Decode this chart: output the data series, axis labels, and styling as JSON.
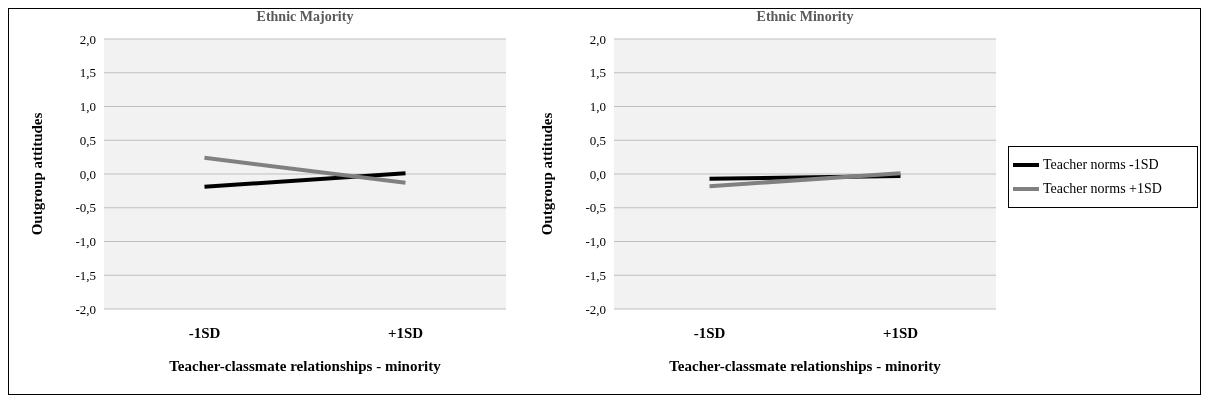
{
  "chart_data": [
    {
      "type": "line",
      "title": "Ethnic Majority",
      "xlabel": "Teacher-classmate relationships - minority",
      "ylabel": "Outgroup attitudes",
      "categories": [
        "-1SD",
        "+1SD"
      ],
      "series": [
        {
          "color": "#000000",
          "values": [
            -0.19,
            0.01
          ]
        },
        {
          "color": "#808080",
          "values": [
            0.24,
            -0.13
          ]
        }
      ],
      "ylim": [
        -2,
        2
      ],
      "yticks": [
        {
          "value": -2,
          "label": "-2,0"
        },
        {
          "value": -1.5,
          "label": "-1,5"
        },
        {
          "value": -1,
          "label": "-1,0"
        },
        {
          "value": -0.5,
          "label": "-0,5"
        },
        {
          "value": 0,
          "label": "0,0"
        },
        {
          "value": 0.5,
          "label": "0,5"
        },
        {
          "value": 1,
          "label": "1,0"
        },
        {
          "value": 1.5,
          "label": "1,5"
        },
        {
          "value": 2,
          "label": "2,0"
        }
      ],
      "grid": "y",
      "marker": "none",
      "line_style": "solid"
    },
    {
      "type": "line",
      "title": "Ethnic Minority",
      "xlabel": "Teacher-classmate relationships - minority",
      "ylabel": "Outgroup attitudes",
      "categories": [
        "-1SD",
        "+1SD"
      ],
      "series": [
        {
          "name": "Teacher norms -1SD",
          "color": "#000000",
          "values": [
            -0.07,
            -0.03
          ]
        },
        {
          "name": "Teacher norms +1SD",
          "color": "#808080",
          "values": [
            -0.18,
            0.01
          ]
        }
      ],
      "ylim": [
        -2,
        2
      ],
      "yticks": [
        {
          "value": -2,
          "label": "-2,0"
        },
        {
          "value": -1.5,
          "label": "-1,5"
        },
        {
          "value": -1,
          "label": "-1,0"
        },
        {
          "value": -0.5,
          "label": "-0,5"
        },
        {
          "value": 0,
          "label": "0,0"
        },
        {
          "value": 0.5,
          "label": "0,5"
        },
        {
          "value": 1,
          "label": "1,0"
        },
        {
          "value": 1.5,
          "label": "1,5"
        },
        {
          "value": 2,
          "label": "2,0"
        }
      ],
      "grid": "y",
      "legend": "right",
      "marker": "none",
      "line_style": "solid"
    }
  ]
}
